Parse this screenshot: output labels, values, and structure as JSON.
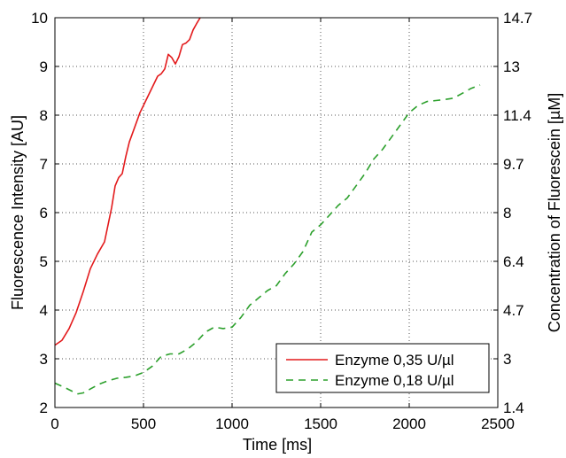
{
  "chart_data": {
    "type": "line",
    "xlabel": "Time [ms]",
    "ylabel": "Fluorescence Intensity [AU]",
    "y2label": "Concentration of Fluorescein [µM]",
    "xlim": [
      0,
      2500
    ],
    "ylim": [
      2,
      10
    ],
    "xticks": [
      "0",
      "500",
      "1000",
      "1500",
      "2000",
      "2500"
    ],
    "yticks": [
      "2",
      "3",
      "4",
      "5",
      "6",
      "7",
      "8",
      "9",
      "10"
    ],
    "y2ticks": [
      "1.4",
      "3",
      "4.7",
      "6.4",
      "8",
      "9.7",
      "11.4",
      "13",
      "14.7"
    ],
    "grid": true,
    "legend_position": "bottom-right",
    "series": [
      {
        "name": "Enzyme 0,35 U/µl",
        "color": "#e31a1c",
        "style": "solid",
        "x": [
          0,
          40,
          80,
          120,
          160,
          200,
          240,
          280,
          300,
          320,
          340,
          360,
          380,
          400,
          420,
          450,
          480,
          500,
          540,
          580,
          600,
          620,
          640,
          660,
          680,
          700,
          720,
          740,
          760,
          780,
          800,
          820
        ],
        "y": [
          3.28,
          3.38,
          3.62,
          3.95,
          4.38,
          4.85,
          5.15,
          5.4,
          5.75,
          6.1,
          6.55,
          6.72,
          6.8,
          7.15,
          7.45,
          7.75,
          8.05,
          8.2,
          8.5,
          8.8,
          8.85,
          8.95,
          9.25,
          9.18,
          9.05,
          9.2,
          9.45,
          9.48,
          9.55,
          9.75,
          9.88,
          10.0
        ]
      },
      {
        "name": "Enzyme 0,18 U/µl",
        "color": "#2ca02c",
        "style": "dashed",
        "x": [
          0,
          50,
          100,
          130,
          160,
          200,
          250,
          300,
          350,
          400,
          450,
          500,
          550,
          600,
          650,
          700,
          750,
          800,
          850,
          900,
          950,
          1000,
          1050,
          1100,
          1150,
          1200,
          1250,
          1300,
          1350,
          1400,
          1450,
          1500,
          1550,
          1600,
          1650,
          1700,
          1750,
          1800,
          1850,
          1900,
          1950,
          2000,
          2050,
          2100,
          2150,
          2200,
          2250,
          2300,
          2350,
          2400
        ],
        "y": [
          2.5,
          2.42,
          2.33,
          2.28,
          2.3,
          2.38,
          2.48,
          2.55,
          2.6,
          2.62,
          2.65,
          2.72,
          2.85,
          3.05,
          3.1,
          3.1,
          3.2,
          3.35,
          3.55,
          3.65,
          3.62,
          3.65,
          3.85,
          4.1,
          4.25,
          4.4,
          4.5,
          4.75,
          4.95,
          5.2,
          5.6,
          5.75,
          5.95,
          6.15,
          6.3,
          6.55,
          6.8,
          7.1,
          7.3,
          7.55,
          7.8,
          8.05,
          8.2,
          8.28,
          8.3,
          8.32,
          8.35,
          8.45,
          8.55,
          8.62
        ]
      }
    ]
  }
}
